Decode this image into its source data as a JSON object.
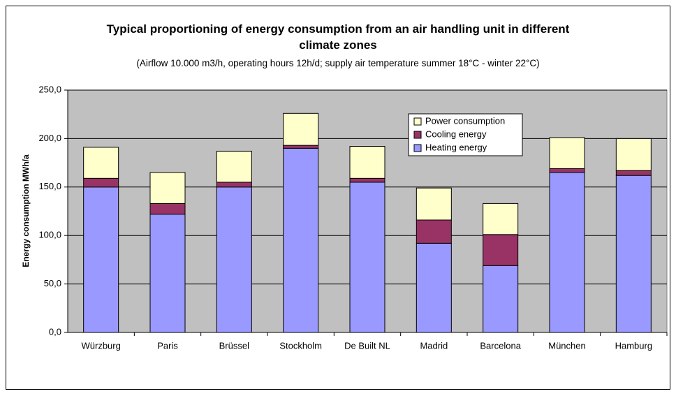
{
  "chart_data": {
    "type": "stacked_bar",
    "title": "Typical proportioning of energy consumption from an air handling unit in different climate zones",
    "subtitle": "(Airflow 10.000 m3/h, operating hours 12h/d; supply air temperature summer 18°C - winter 22°C)",
    "y_label": "Energy consumption MWh/a",
    "categories": [
      "Würzburg",
      "Paris",
      "Brüssel",
      "Stockholm",
      "De Built NL",
      "Madrid",
      "Barcelona",
      "München",
      "Hamburg"
    ],
    "series": [
      {
        "name": "Heating energy",
        "color": "#9999ff",
        "values": [
          150,
          122,
          150,
          190,
          155,
          92,
          69,
          165,
          162
        ]
      },
      {
        "name": "Cooling energy",
        "color": "#993366",
        "values": [
          9,
          11,
          5,
          3,
          4,
          24,
          32,
          4,
          5
        ]
      },
      {
        "name": "Power consumption",
        "color": "#ffffcc",
        "values": [
          32,
          32,
          32,
          33,
          33,
          33,
          32,
          32,
          33
        ]
      }
    ],
    "ylim": [
      0,
      250
    ],
    "yticks": [
      {
        "value": 0,
        "label": "0,0"
      },
      {
        "value": 50,
        "label": "50,0"
      },
      {
        "value": 100,
        "label": "100,0"
      },
      {
        "value": 150,
        "label": "150,0"
      },
      {
        "value": 200,
        "label": "200,0"
      },
      {
        "value": 250,
        "label": "250,0"
      }
    ],
    "grid": true,
    "legend": "top-right"
  }
}
